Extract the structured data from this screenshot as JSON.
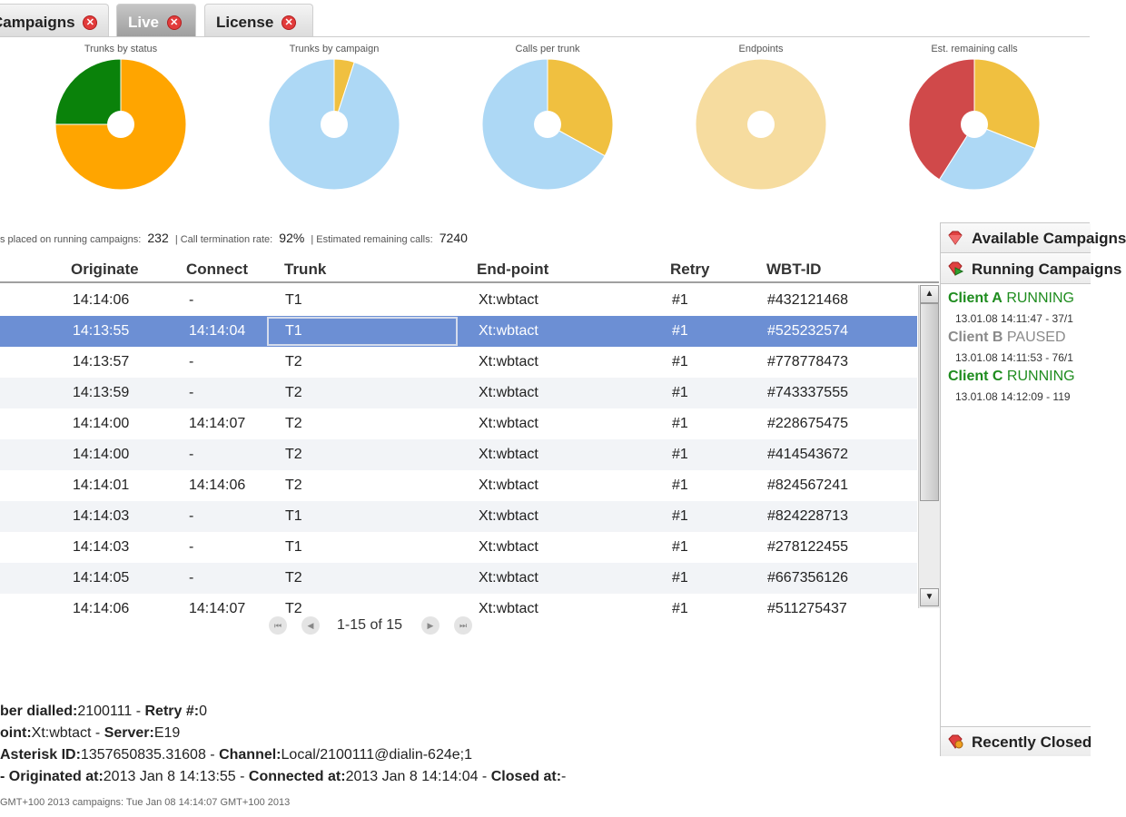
{
  "tabs": [
    {
      "label": "Campaigns",
      "close": "✕"
    },
    {
      "label": "Live",
      "close": "✕"
    },
    {
      "label": "License",
      "close": "✕"
    }
  ],
  "charts": [
    {
      "title": "Trunks by status",
      "type": "pie",
      "slices": [
        {
          "value": 0.75,
          "color": "#ffa500"
        },
        {
          "value": 0.25,
          "color": "#0a820a"
        }
      ]
    },
    {
      "title": "Trunks by campaign",
      "type": "pie",
      "slices": [
        {
          "value": 0.05,
          "color": "#f0c040"
        },
        {
          "value": 0.95,
          "color": "#add8f5"
        }
      ]
    },
    {
      "title": "Calls per trunk",
      "type": "pie",
      "slices": [
        {
          "value": 0.33,
          "color": "#f0c040"
        },
        {
          "value": 0.67,
          "color": "#add8f5"
        }
      ]
    },
    {
      "title": "Endpoints",
      "type": "pie",
      "slices": [
        {
          "value": 1.0,
          "color": "#f6dc9f"
        }
      ]
    },
    {
      "title": "Est. remaining calls",
      "type": "pie",
      "slices": [
        {
          "value": 0.31,
          "color": "#f0c040"
        },
        {
          "value": 0.28,
          "color": "#add8f5"
        },
        {
          "value": 0.41,
          "color": "#d0494a"
        }
      ]
    }
  ],
  "stats": {
    "calls_label": "s placed on running campaigns:",
    "calls_value": "232",
    "rate_label": "| Call termination rate:",
    "rate_value": "92%",
    "remaining_label": "| Estimated remaining calls:",
    "remaining_value": "7240"
  },
  "table": {
    "headers": {
      "originate": "Originate",
      "connect": "Connect",
      "trunk": "Trunk",
      "endpoint": "End-point",
      "retry": "Retry",
      "wbtid": "WBT-ID"
    },
    "rows": [
      {
        "originate": "14:14:06",
        "connect": "-",
        "trunk": "T1",
        "endpoint": "Xt:wbtact",
        "retry": "#1",
        "wbtid": "#432121468"
      },
      {
        "originate": "14:13:55",
        "connect": "14:14:04",
        "trunk": "T1",
        "endpoint": "Xt:wbtact",
        "retry": "#1",
        "wbtid": "#525232574"
      },
      {
        "originate": "14:13:57",
        "connect": "-",
        "trunk": "T2",
        "endpoint": "Xt:wbtact",
        "retry": "#1",
        "wbtid": "#778778473"
      },
      {
        "originate": "14:13:59",
        "connect": "-",
        "trunk": "T2",
        "endpoint": "Xt:wbtact",
        "retry": "#1",
        "wbtid": "#743337555"
      },
      {
        "originate": "14:14:00",
        "connect": "14:14:07",
        "trunk": "T2",
        "endpoint": "Xt:wbtact",
        "retry": "#1",
        "wbtid": "#228675475"
      },
      {
        "originate": "14:14:00",
        "connect": "-",
        "trunk": "T2",
        "endpoint": "Xt:wbtact",
        "retry": "#1",
        "wbtid": "#414543672"
      },
      {
        "originate": "14:14:01",
        "connect": "14:14:06",
        "trunk": "T2",
        "endpoint": "Xt:wbtact",
        "retry": "#1",
        "wbtid": "#824567241"
      },
      {
        "originate": "14:14:03",
        "connect": "-",
        "trunk": "T1",
        "endpoint": "Xt:wbtact",
        "retry": "#1",
        "wbtid": "#824228713"
      },
      {
        "originate": "14:14:03",
        "connect": "-",
        "trunk": "T1",
        "endpoint": "Xt:wbtact",
        "retry": "#1",
        "wbtid": "#278122455"
      },
      {
        "originate": "14:14:05",
        "connect": "-",
        "trunk": "T2",
        "endpoint": "Xt:wbtact",
        "retry": "#1",
        "wbtid": "#667356126"
      },
      {
        "originate": "14:14:06",
        "connect": "14:14:07",
        "trunk": "T2",
        "endpoint": "Xt:wbtact",
        "retry": "#1",
        "wbtid": "#511275437"
      }
    ],
    "selected_index": 1
  },
  "pager": {
    "text": "1-15 of 15",
    "first": "⏮",
    "prev": "◀",
    "next": "▶",
    "last": "⏭"
  },
  "scroll": {
    "up": "▲",
    "down": "▼"
  },
  "detail": {
    "line1_k1": "ber dialled:",
    "line1_v1": "2100111",
    "line1_sep": " - ",
    "line1_k2": "Retry #:",
    "line1_v2": "0",
    "line2_k1": "oint:",
    "line2_v1": "Xt:wbtact",
    "line2_sep": " - ",
    "line2_k2": "Server:",
    "line2_v2": "E19",
    "line3_k1": "Asterisk ID:",
    "line3_v1": "1357650835.31608",
    "line3_sep": " - ",
    "line3_k2": "Channel:",
    "line3_v2": "Local/2100111@dialin-624e;1",
    "line4_k1": "- Originated at:",
    "line4_v1": "2013 Jan 8 14:13:55",
    "line4_sep1": " - ",
    "line4_k2": "Connected at:",
    "line4_v2": "2013 Jan 8 14:14:04",
    "line4_sep2": " - ",
    "line4_k3": "Closed at:",
    "line4_v3": "-"
  },
  "footer": "GMT+100 2013 campaigns: Tue Jan 08 14:14:07 GMT+100 2013",
  "panel": {
    "available": "Available Campaigns",
    "running": "Running Campaigns",
    "recently_closed": "Recently Closed",
    "campaigns": [
      {
        "name": "Client A",
        "status": "RUNNING",
        "detail": "13.01.08 14:11:47 - 37/1",
        "name_color": "#1e8c1e",
        "status_color": "#1e8c1e"
      },
      {
        "name": "Client B",
        "status": "PAUSED",
        "detail": "13.01.08 14:11:53 - 76/1",
        "name_color": "#8a8a8a",
        "status_color": "#8a8a8a"
      },
      {
        "name": "Client C",
        "status": "RUNNING",
        "detail": "13.01.08 14:12:09 - 119",
        "name_color": "#1e8c1e",
        "status_color": "#1e8c1e"
      }
    ]
  }
}
